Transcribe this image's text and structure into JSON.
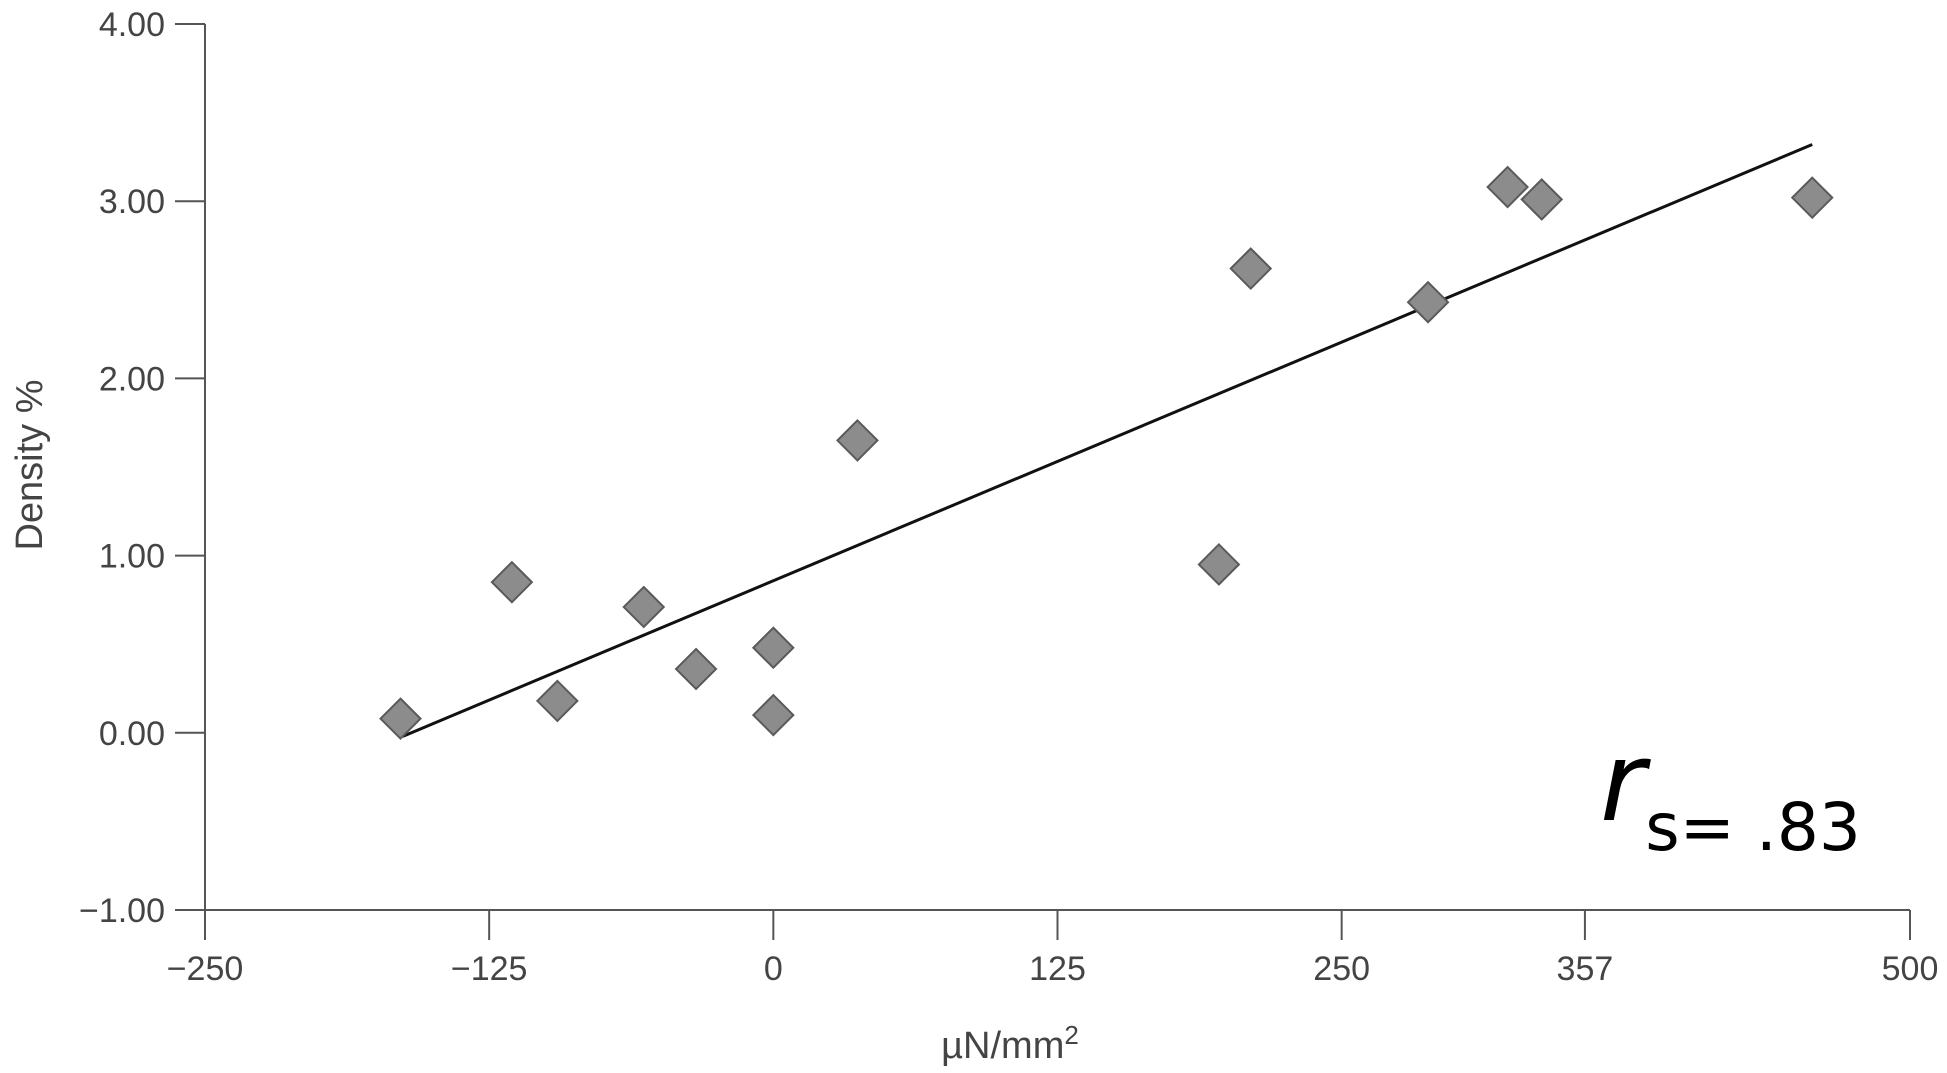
{
  "chart_data": {
    "type": "scatter",
    "title": "",
    "xlabel": "µN/mm",
    "xlabel_superscript": "2",
    "ylabel": "Density %",
    "xlim": [
      -250,
      500
    ],
    "ylim": [
      -1.0,
      4.0
    ],
    "x_ticks": [
      -250,
      -125,
      0,
      125,
      250,
      357,
      500
    ],
    "x_tick_labels": [
      "−250",
      "−125",
      "0",
      "125",
      "250",
      "357",
      "500"
    ],
    "y_ticks": [
      -1.0,
      0.0,
      1.0,
      2.0,
      3.0,
      4.0
    ],
    "y_tick_labels": [
      "−1.00",
      "0.00",
      "1.00",
      "2.00",
      "3.00",
      "4.00"
    ],
    "grid": false,
    "legend": "none",
    "marker": "diamond",
    "marker_color": "#8c8c8c",
    "marker_edge_color": "#5a5a5a",
    "series": [
      {
        "points": [
          {
            "x": -164,
            "y": 0.08
          },
          {
            "x": -115,
            "y": 0.85
          },
          {
            "x": -95,
            "y": 0.18
          },
          {
            "x": -57,
            "y": 0.71
          },
          {
            "x": -34,
            "y": 0.36
          },
          {
            "x": 0,
            "y": 0.48
          },
          {
            "x": 0,
            "y": 0.1
          },
          {
            "x": 37,
            "y": 1.65
          },
          {
            "x": 196,
            "y": 0.95
          },
          {
            "x": 210,
            "y": 2.62
          },
          {
            "x": 288,
            "y": 2.43
          },
          {
            "x": 323,
            "y": 3.08
          },
          {
            "x": 338,
            "y": 3.01
          },
          {
            "x": 457,
            "y": 3.02
          }
        ]
      }
    ],
    "trendline": {
      "x": [
        -163,
        457
      ],
      "y": [
        -0.02,
        3.32
      ]
    },
    "annotation": {
      "symbol": "r",
      "subscript": "s",
      "value": "= .83"
    }
  }
}
